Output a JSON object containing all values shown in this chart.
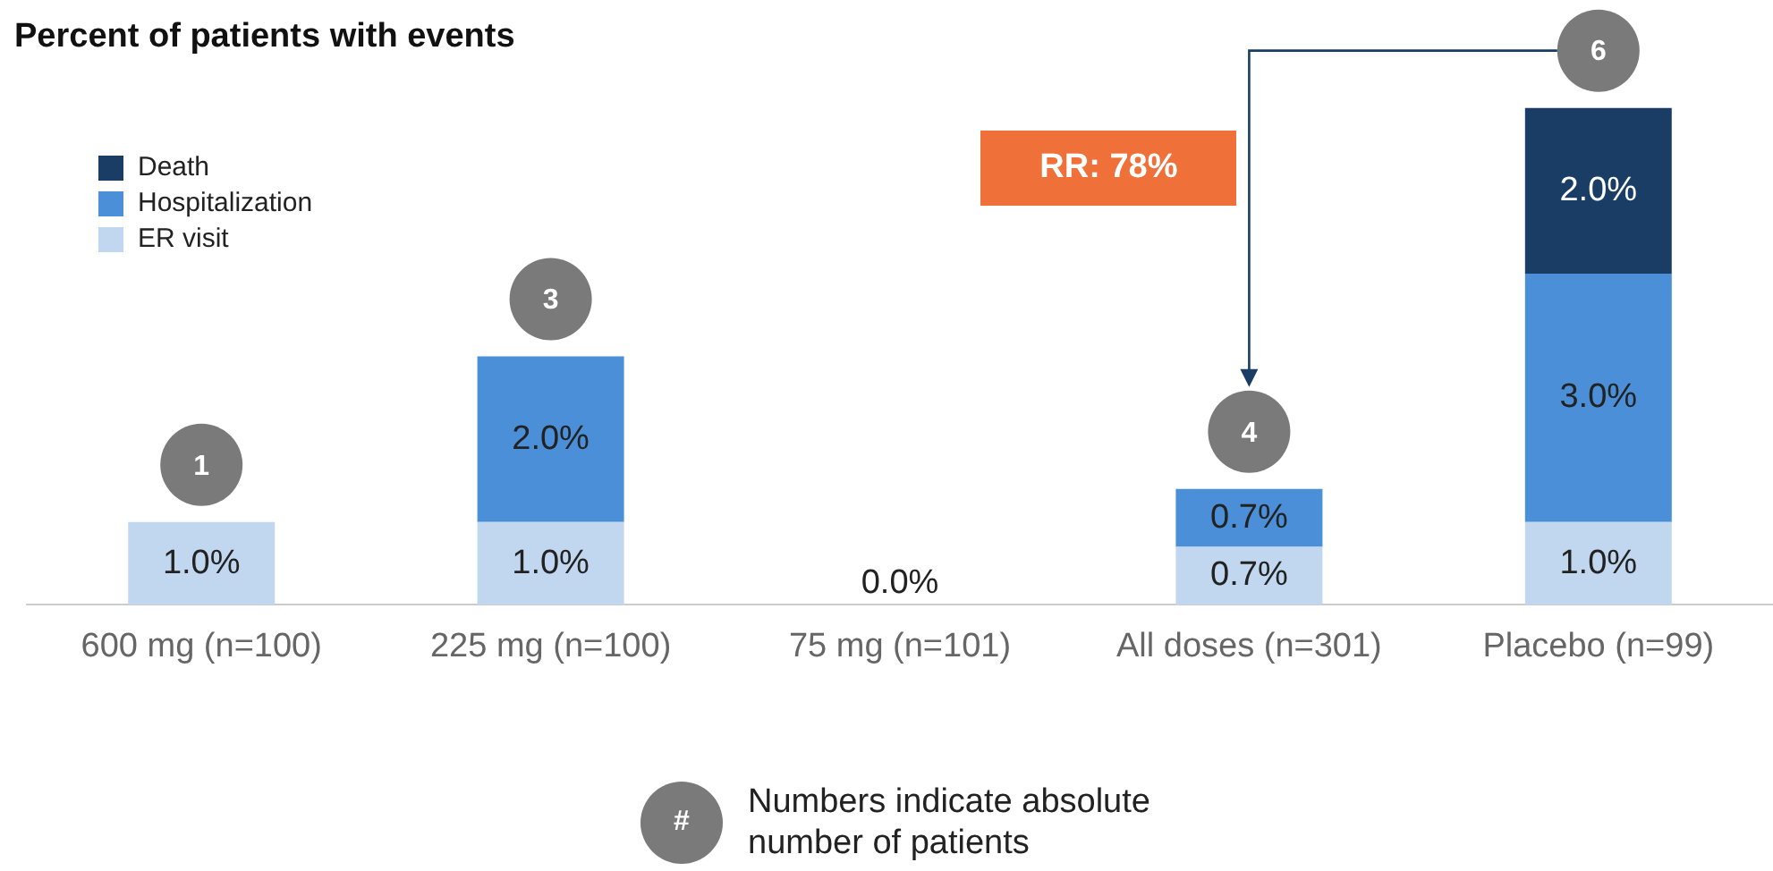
{
  "chart_data": {
    "type": "bar",
    "title": "Percent of patients with events",
    "stacked": true,
    "legend": "top left",
    "grid": false,
    "tick_labels": "x",
    "categories": [
      "600 mg (n=100)",
      "225 mg (n=100)",
      "75 mg (n=101)",
      "All doses (n=301)",
      "Placebo (n=99)"
    ],
    "series": [
      {
        "name": "ER visit",
        "color": "#c0d7ef",
        "values": [
          1.0,
          1.0,
          0,
          0.7,
          1.0
        ],
        "value_labels": [
          "1.0%",
          "1.0%",
          "0.0%",
          "0.7%",
          "1.0%"
        ]
      },
      {
        "name": "Hospitalization",
        "color": "#4a8fd8",
        "values": [
          0,
          2.0,
          0,
          0.7,
          3.0
        ],
        "value_labels": [
          null,
          "2.0%",
          null,
          "0.7%",
          "3.0%"
        ]
      },
      {
        "name": "Death",
        "color": "#1a3d66",
        "values": [
          0,
          0,
          0,
          0,
          2.0
        ],
        "value_labels": [
          null,
          null,
          null,
          null,
          "2.0%"
        ]
      }
    ],
    "annotations": [
      {
        "text": "1",
        "x": "600 mg (n=100)",
        "y": 1.0
      },
      {
        "text": "3",
        "x": "225 mg (n=100)",
        "y": 3.0
      },
      {
        "text": "4",
        "x": "All doses (n=301)",
        "y": 1.4
      },
      {
        "text": "6",
        "x": "Placebo (n=99)",
        "y": 6.0
      },
      "RR: 78%",
      "#",
      "Numbers indicate absolute number of patients"
    ]
  }
}
